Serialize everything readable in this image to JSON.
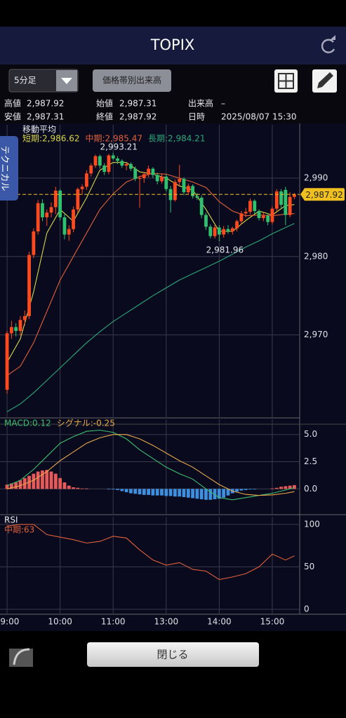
{
  "header": {
    "title": "TOPIX"
  },
  "toolbar": {
    "interval": "5分足",
    "volume_button": "価格帯別出来高"
  },
  "info": [
    [
      [
        "高値",
        "2,987.92"
      ],
      [
        "始値",
        "2,987.31"
      ],
      [
        "出来高",
        "–"
      ]
    ],
    [
      [
        "安値",
        "2,987.31"
      ],
      [
        "終値",
        "2,987.92"
      ],
      [
        "日時",
        "2025/08/07 15:30"
      ]
    ]
  ],
  "side_tab": "テクニカル",
  "close_button": "閉じる",
  "chart_data": [
    {
      "type": "candlestick",
      "title": "移動平均",
      "xlim": [
        -1.6,
        66.2
      ],
      "ylim": [
        2959.5,
        2996.8
      ],
      "yticks": [
        {
          "value": 2990,
          "label": "2,990"
        },
        {
          "value": 2980,
          "label": "2,980"
        },
        {
          "value": 2970,
          "label": "2,970"
        }
      ],
      "grid": true,
      "up_color": "#ff4a1f",
      "down_color": "#2ec26e",
      "candles": [
        [
          2963.0,
          2970.5,
          2962.5,
          2970.2
        ],
        [
          2970.2,
          2971.8,
          2969.5,
          2971.0
        ],
        [
          2971.0,
          2971.5,
          2969.8,
          2970.5
        ],
        [
          2970.5,
          2972.4,
          2969.9,
          2971.9
        ],
        [
          2971.9,
          2973.1,
          2971.2,
          2972.4
        ],
        [
          2972.4,
          2980.6,
          2972.0,
          2980.2
        ],
        [
          2980.2,
          2983.6,
          2979.8,
          2983.2
        ],
        [
          2983.2,
          2987.2,
          2982.8,
          2986.8
        ],
        [
          2986.8,
          2987.3,
          2984.5,
          2985.0
        ],
        [
          2985.0,
          2986.0,
          2983.9,
          2985.6
        ],
        [
          2985.6,
          2986.9,
          2985.0,
          2986.3
        ],
        [
          2986.3,
          2988.9,
          2985.4,
          2988.4
        ],
        [
          2988.4,
          2988.6,
          2984.6,
          2985.0
        ],
        [
          2985.0,
          2985.4,
          2982.2,
          2982.8
        ],
        [
          2982.8,
          2984.0,
          2982.0,
          2983.5
        ],
        [
          2983.5,
          2986.4,
          2983.1,
          2986.0
        ],
        [
          2986.0,
          2988.8,
          2985.6,
          2988.6
        ],
        [
          2988.6,
          2989.2,
          2987.9,
          2988.9
        ],
        [
          2988.9,
          2991.0,
          2988.5,
          2990.6
        ],
        [
          2990.6,
          2991.9,
          2990.2,
          2991.6
        ],
        [
          2991.6,
          2993.0,
          2991.3,
          2992.8
        ],
        [
          2992.8,
          2993.0,
          2991.2,
          2991.6
        ],
        [
          2991.6,
          2991.9,
          2990.4,
          2990.8
        ],
        [
          2990.8,
          2993.1,
          2990.5,
          2992.9
        ],
        [
          2992.9,
          2993.21,
          2992.3,
          2992.5
        ],
        [
          2992.5,
          2992.8,
          2991.8,
          2992.2
        ],
        [
          2992.2,
          2992.4,
          2991.3,
          2991.6
        ],
        [
          2991.6,
          2992.0,
          2991.0,
          2991.8
        ],
        [
          2991.8,
          2992.0,
          2990.9,
          2991.2
        ],
        [
          2991.2,
          2991.5,
          2989.6,
          2989.9
        ],
        [
          2989.9,
          2990.3,
          2986.2,
          2990.0
        ],
        [
          2990.0,
          2990.8,
          2989.4,
          2990.5
        ],
        [
          2990.5,
          2991.6,
          2990.1,
          2991.2
        ],
        [
          2991.2,
          2991.4,
          2990.0,
          2990.4
        ],
        [
          2990.4,
          2990.7,
          2989.2,
          2989.6
        ],
        [
          2989.6,
          2990.6,
          2989.3,
          2990.2
        ],
        [
          2990.2,
          2990.5,
          2988.3,
          2988.6
        ],
        [
          2988.6,
          2989.0,
          2985.6,
          2987.2
        ],
        [
          2987.2,
          2989.8,
          2987.0,
          2989.5
        ],
        [
          2989.5,
          2991.7,
          2989.0,
          2989.9
        ],
        [
          2989.9,
          2990.1,
          2987.8,
          2988.2
        ],
        [
          2988.2,
          2989.3,
          2987.9,
          2989.0
        ],
        [
          2989.0,
          2989.2,
          2987.4,
          2987.7
        ],
        [
          2987.7,
          2988.1,
          2987.2,
          2987.5
        ],
        [
          2987.5,
          2987.8,
          2984.9,
          2985.3
        ],
        [
          2985.3,
          2985.6,
          2983.4,
          2983.8
        ],
        [
          2983.8,
          2984.1,
          2982.3,
          2982.6
        ],
        [
          2982.6,
          2984.0,
          2982.3,
          2983.7
        ],
        [
          2983.7,
          2984.0,
          2981.96,
          2982.8
        ],
        [
          2982.8,
          2983.9,
          2982.4,
          2983.5
        ],
        [
          2983.5,
          2984.0,
          2982.9,
          2983.2
        ],
        [
          2983.2,
          2983.8,
          2982.8,
          2983.6
        ],
        [
          2983.6,
          2984.7,
          2983.2,
          2984.5
        ],
        [
          2984.5,
          2985.8,
          2984.1,
          2985.5
        ],
        [
          2985.5,
          2986.2,
          2985.0,
          2985.7
        ],
        [
          2985.7,
          2987.4,
          2985.4,
          2987.1
        ],
        [
          2987.1,
          2987.3,
          2985.4,
          2985.8
        ],
        [
          2985.8,
          2986.0,
          2984.6,
          2984.9
        ],
        [
          2984.9,
          2985.6,
          2984.5,
          2985.2
        ],
        [
          2985.2,
          2985.5,
          2984.0,
          2984.4
        ],
        [
          2984.4,
          2986.4,
          2984.1,
          2986.1
        ],
        [
          2986.1,
          2988.6,
          2985.8,
          2988.3
        ],
        [
          2988.3,
          2988.6,
          2986.2,
          2986.6
        ],
        [
          2988.5,
          2988.9,
          2984.0,
          2985.3
        ],
        [
          2985.3,
          2988.2,
          2985.0,
          2987.6
        ],
        [
          2987.6,
          2988.1,
          2987.3,
          2987.92
        ]
      ],
      "x": [
        0,
        3,
        6,
        9,
        12,
        15,
        18,
        21,
        24,
        27,
        30,
        33,
        36,
        39,
        42,
        45,
        48,
        51,
        54,
        57,
        60,
        63,
        65
      ],
      "series": [
        {
          "name": "短期:2,986.62",
          "color": "#d8d84a",
          "values": [
            2966.5,
            2969.5,
            2975.5,
            2983.0,
            2986.0,
            2984.5,
            2987.5,
            2991.0,
            2992.0,
            2992.0,
            2990.8,
            2990.5,
            2990.0,
            2989.0,
            2988.5,
            2986.0,
            2983.2,
            2983.2,
            2984.6,
            2985.8,
            2985.3,
            2986.5,
            2986.62
          ]
        },
        {
          "name": "中期:2,985.47",
          "color": "#e0603a",
          "values": [
            2964.8,
            2966.0,
            2969.0,
            2973.0,
            2977.0,
            2980.0,
            2983.0,
            2986.0,
            2988.0,
            2989.5,
            2990.2,
            2990.6,
            2990.5,
            2990.0,
            2989.5,
            2988.8,
            2987.0,
            2985.8,
            2985.2,
            2985.3,
            2985.2,
            2985.4,
            2985.47
          ]
        },
        {
          "name": "長期:2,984.21",
          "color": "#2aa87a",
          "values": [
            2960.2,
            2961.2,
            2962.6,
            2964.2,
            2965.8,
            2967.4,
            2969.0,
            2970.4,
            2971.7,
            2972.8,
            2973.9,
            2975.0,
            2976.0,
            2977.0,
            2977.8,
            2978.6,
            2979.4,
            2980.3,
            2981.2,
            2982.0,
            2982.9,
            2983.7,
            2984.21
          ]
        }
      ],
      "annotations": [
        {
          "text": "2,993.21",
          "x": 24,
          "value": 2993.21,
          "position": "above"
        },
        {
          "text": "2,981.96",
          "x": 48,
          "value": 2981.96,
          "position": "below"
        }
      ],
      "last": 2987.92,
      "last_label": "2,987.92",
      "last_color": "#f0c020"
    },
    {
      "type": "macd",
      "xlim": [
        -1.6,
        66.2
      ],
      "ylim": [
        -2.3,
        6.4
      ],
      "yticks": [
        {
          "value": 5,
          "label": "5.0"
        },
        {
          "value": 2.5,
          "label": "2.5"
        },
        {
          "value": 0,
          "label": "0.0"
        }
      ],
      "grid": true,
      "x": [
        0,
        3,
        6,
        9,
        12,
        15,
        18,
        21,
        24,
        27,
        30,
        33,
        36,
        39,
        42,
        45,
        48,
        51,
        54,
        57,
        60,
        63,
        65
      ],
      "series": [
        {
          "name": "MACD:0.12",
          "color": "#3cbf6e",
          "values": [
            0.3,
            0.8,
            1.8,
            3.0,
            4.2,
            4.8,
            5.3,
            5.4,
            5.2,
            4.6,
            3.6,
            2.8,
            2.0,
            1.4,
            0.9,
            0.0,
            -0.8,
            -1.0,
            -0.8,
            -0.6,
            -0.4,
            -0.1,
            0.12
          ]
        },
        {
          "name": "シグナル:-0.25",
          "color": "#e8a94a",
          "values": [
            0.0,
            0.3,
            0.8,
            1.6,
            2.6,
            3.4,
            4.2,
            4.7,
            5.0,
            5.0,
            4.6,
            4.0,
            3.3,
            2.6,
            2.0,
            1.2,
            0.4,
            -0.2,
            -0.5,
            -0.6,
            -0.55,
            -0.4,
            -0.25
          ]
        }
      ],
      "histogram": [
        0.4,
        0.5,
        0.6,
        0.8,
        1.0,
        1.2,
        1.4,
        1.6,
        1.7,
        1.75,
        1.6,
        1.4,
        1.0,
        0.6,
        0.3,
        0.15,
        0.1,
        0.05,
        0.05,
        0.0,
        0.0,
        0.0,
        0.0,
        -0.05,
        -0.05,
        -0.1,
        -0.2,
        -0.3,
        -0.4,
        -0.45,
        -0.5,
        -0.55,
        -0.55,
        -0.6,
        -0.6,
        -0.6,
        -0.65,
        -0.65,
        -0.7,
        -0.7,
        -0.75,
        -0.8,
        -0.85,
        -0.9,
        -0.95,
        -1.0,
        -1.0,
        -0.95,
        -0.9,
        -0.8,
        -0.6,
        -0.4,
        -0.25,
        -0.15,
        -0.1,
        -0.05,
        -0.05,
        0.0,
        0.0,
        0.0,
        0.05,
        0.1,
        0.2,
        0.25,
        0.3,
        0.35
      ],
      "positive_color": "#e85a5a",
      "negative_color": "#3d8fe0"
    },
    {
      "type": "line",
      "title": "RSI",
      "xlim": [
        -1.6,
        66.2
      ],
      "ylim": [
        -5,
        109
      ],
      "yticks": [
        100,
        50,
        0
      ],
      "grid": true,
      "xticks": [
        {
          "value": 0,
          "label": "09:00"
        },
        {
          "value": 12,
          "label": "10:00"
        },
        {
          "value": 24,
          "label": "11:00"
        },
        {
          "value": 36,
          "label": "13:00"
        },
        {
          "value": 48,
          "label": "14:00"
        },
        {
          "value": 60,
          "label": "15:00"
        }
      ],
      "x": [
        0,
        3,
        6,
        9,
        12,
        15,
        18,
        21,
        24,
        27,
        30,
        33,
        36,
        39,
        42,
        45,
        48,
        51,
        54,
        57,
        60,
        63,
        65
      ],
      "series": [
        {
          "name": "中期:63",
          "color": "#e0603a",
          "values": [
            98,
            100,
            100,
            88,
            85,
            82,
            78,
            80,
            86,
            84,
            70,
            58,
            52,
            55,
            47,
            45,
            35,
            38,
            42,
            50,
            65,
            58,
            63
          ]
        }
      ]
    }
  ]
}
